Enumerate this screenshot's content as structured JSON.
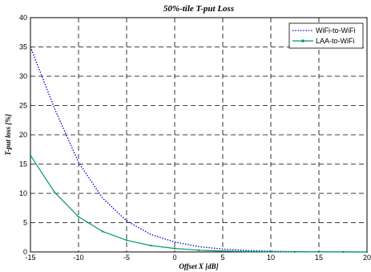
{
  "chart_data": {
    "type": "line",
    "title": "50%-tile T-put Loss",
    "xlabel": "Offset X [dB]",
    "ylabel": "T-put loss [%]",
    "xlim": [
      -15,
      20
    ],
    "ylim": [
      0,
      40
    ],
    "xticks": [
      -15,
      -10,
      -5,
      0,
      5,
      10,
      15,
      20
    ],
    "yticks": [
      0,
      5,
      10,
      15,
      20,
      25,
      30,
      35,
      40
    ],
    "grid": true,
    "legend_position": "top-right",
    "series": [
      {
        "name": "WiFi-to-WiFi",
        "color": "#0000cc",
        "style": "dotted",
        "marker": "none",
        "x": [
          -15,
          -12.5,
          -10,
          -7.5,
          -5,
          -2.5,
          0,
          2.5,
          5,
          7.5,
          10,
          12.5,
          15,
          17.5,
          20
        ],
        "y": [
          35,
          24.5,
          15.3,
          9.2,
          5.3,
          3,
          1.7,
          0.9,
          0.5,
          0.25,
          0.12,
          0.06,
          0.03,
          0.01,
          0
        ]
      },
      {
        "name": "LAA-to-WiFi",
        "color": "#009966",
        "style": "solid",
        "marker": "dot",
        "x": [
          -15,
          -12.5,
          -10,
          -7.5,
          -5,
          -2.5,
          0,
          2.5,
          5,
          7.5,
          10,
          12.5,
          15,
          17.5,
          20
        ],
        "y": [
          16.5,
          10.2,
          6,
          3.5,
          2,
          1.1,
          0.6,
          0.3,
          0.15,
          0.07,
          0.03,
          0.01,
          0.01,
          0,
          0
        ]
      }
    ]
  }
}
